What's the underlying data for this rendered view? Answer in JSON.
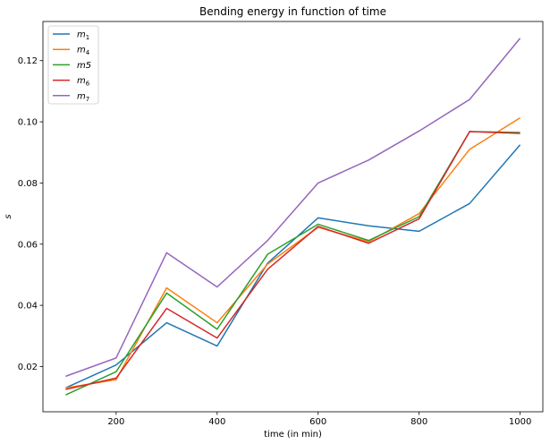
{
  "chart_data": {
    "type": "line",
    "title": "Bending energy in function of time",
    "xlabel": "time (in min)",
    "ylabel": "s",
    "xlim": [
      55,
      1045
    ],
    "ylim": [
      0.0052,
      0.1328
    ],
    "xticks": [
      200,
      400,
      600,
      800,
      1000
    ],
    "yticks": [
      0.02,
      0.04,
      0.06,
      0.08,
      0.1,
      0.12
    ],
    "ytick_labels": [
      "0.02",
      "0.04",
      "0.06",
      "0.08",
      "0.10",
      "0.12"
    ],
    "grid": false,
    "legend_position": "top-left",
    "x": [
      100,
      200,
      300,
      400,
      500,
      600,
      700,
      800,
      900,
      1000
    ],
    "series": [
      {
        "name": "m",
        "subscript": "1",
        "color": "#1f77b4",
        "values": [
          0.013,
          0.0205,
          0.0343,
          0.0267,
          0.0538,
          0.0686,
          0.066,
          0.0642,
          0.0733,
          0.0925
        ]
      },
      {
        "name": "m",
        "subscript": "4",
        "color": "#ff7f0e",
        "values": [
          0.013,
          0.0157,
          0.0457,
          0.0343,
          0.0535,
          0.0655,
          0.0608,
          0.07,
          0.091,
          0.1013
        ]
      },
      {
        "name": "m5",
        "subscript": "",
        "color": "#2ca02c",
        "values": [
          0.0107,
          0.0183,
          0.044,
          0.0322,
          0.0567,
          0.0665,
          0.0612,
          0.069,
          0.0968,
          0.0965
        ]
      },
      {
        "name": "m",
        "subscript": "6",
        "color": "#d62728",
        "values": [
          0.0125,
          0.0162,
          0.039,
          0.0293,
          0.0518,
          0.0658,
          0.0603,
          0.0683,
          0.0968,
          0.0962
        ]
      },
      {
        "name": "m",
        "subscript": "7",
        "color": "#9467bd",
        "values": [
          0.0168,
          0.0228,
          0.0572,
          0.046,
          0.0612,
          0.08,
          0.0875,
          0.097,
          0.1073,
          0.1273
        ]
      }
    ]
  }
}
